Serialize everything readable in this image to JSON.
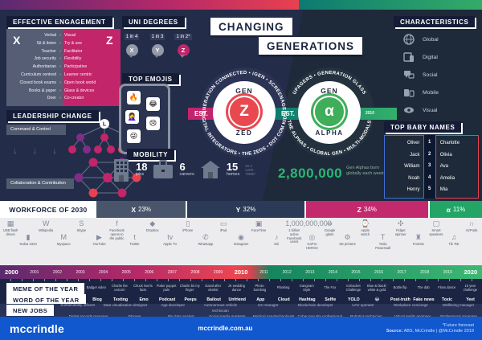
{
  "title_banner": {
    "line1": "CHANGING",
    "line2": "GENERATIONS"
  },
  "effective_engagement": {
    "title": "EFFECTIVE ENGAGEMENT",
    "x_letter": "X",
    "z_letter": "Z",
    "arrow": "›",
    "rows": [
      {
        "x": "Verbal",
        "z": "Visual"
      },
      {
        "x": "Sit & listen",
        "z": "Try & see"
      },
      {
        "x": "Teacher",
        "z": "Facilitator"
      },
      {
        "x": "Job security",
        "z": "Flexibility"
      },
      {
        "x": "Authoritarian",
        "z": "Participative"
      },
      {
        "x": "Curriculum centred",
        "z": "Learner centric"
      },
      {
        "x": "Closed book exams",
        "z": "Open book world"
      },
      {
        "x": "Books & paper",
        "z": "Glass & devices"
      },
      {
        "x": "Doer",
        "z": "Co-creator"
      }
    ]
  },
  "leadership": {
    "title": "LEADERSHIP CHANGE",
    "from": "Command & Control",
    "to": "Collaboration & Contribution",
    "node_letter": "L",
    "arrows": "↓ ↓ ↓"
  },
  "uni_degrees": {
    "title": "UNI DEGREES",
    "items": [
      {
        "ratio": "1 in 4",
        "gen": "X"
      },
      {
        "ratio": "1 in 3",
        "gen": "Y"
      },
      {
        "ratio": "1 in 2*",
        "gen": "Z"
      }
    ]
  },
  "top_emojis": {
    "title": "TOP EMOJIS",
    "emojis": [
      "🔥",
      "😂",
      "🤦‍♀️",
      "😢",
      "😜"
    ]
  },
  "mobility": {
    "title": "MOBILITY",
    "items": [
      {
        "value": "18",
        "label": "jobs"
      },
      {
        "value": "6",
        "label": "careers"
      },
      {
        "value": "15",
        "label": "homes"
      }
    ],
    "suffix_lines": [
      "IN A",
      "LIFE-",
      "TIME*"
    ]
  },
  "gen_z": {
    "arc_top": "GENERATION CONNECTED • iGEN • SCREENAGERS",
    "arc_bottom": "DIGITAL INTEGRATORS • THE ZEDS • DOT COM KIDS",
    "gen": "GEN",
    "letter": "Z",
    "name": "ZED",
    "est": "EST.",
    "year": "1995",
    "accent": "#e8484f",
    "ribbon": "#c2256b"
  },
  "gen_alpha": {
    "arc_top": "UPAGERS • GENERATION GLASS",
    "arc_bottom": "THE ALPHAS • GLOBAL GEN • MULTI-MODALS",
    "gen": "GEN",
    "letter": "α",
    "name": "ALPHA",
    "est": "EST.",
    "year": "2010",
    "accent": "#3fae5a",
    "ribbon_from": "#0c7b70",
    "ribbon_to": "#33b06a"
  },
  "births": {
    "number": "2,800,000",
    "caption": "Gen Alphas born globally each week",
    "color": "#2bb673"
  },
  "characteristics": {
    "title": "CHARACTERISTICS",
    "items": [
      {
        "icon": "globe-icon",
        "label": "Global"
      },
      {
        "icon": "devices-icon",
        "label": "Digital"
      },
      {
        "icon": "social-icon",
        "label": "Social"
      },
      {
        "icon": "mobile-icon",
        "label": "Mobile"
      },
      {
        "icon": "eye-icon",
        "label": "Visual"
      }
    ]
  },
  "baby_names": {
    "title": "TOP BABY NAMES",
    "boys": [
      "Oliver",
      "Jack",
      "William",
      "Noah",
      "Henry"
    ],
    "ranks": [
      "1",
      "2",
      "3",
      "4",
      "5"
    ],
    "girls": [
      "Charlotte",
      "Olivia",
      "Ava",
      "Amelia",
      "Mia"
    ]
  },
  "workforce": {
    "title": "WORKFORCE OF 2030",
    "segments": [
      {
        "gen": "X",
        "pct": "23%",
        "grow": "23",
        "color": "#49556b"
      },
      {
        "gen": "Y",
        "pct": "32%",
        "grow": "32",
        "color": "#2b3a57"
      },
      {
        "gen": "Z",
        "pct": "34%",
        "grow": "34",
        "color": "#c32a6e"
      },
      {
        "gen": "α",
        "pct": "11%",
        "grow": "11",
        "color": "#22a566"
      }
    ]
  },
  "timeline": {
    "years": [
      "2000",
      "2001",
      "2002",
      "2003",
      "2004",
      "2005",
      "2006",
      "2007",
      "2008",
      "2009",
      "2010",
      "2011",
      "2012",
      "2013",
      "2014",
      "2015",
      "2016",
      "2017",
      "2018",
      "2019",
      "2020"
    ],
    "items": [
      {
        "glyph": "▦",
        "label": "USB flash drives",
        "year": "2000"
      },
      {
        "glyph": "▮",
        "label": "Nokia 3310",
        "year": "2000"
      },
      {
        "glyph": "W",
        "label": "Wikipedia",
        "year": "2001"
      },
      {
        "glyph": "M",
        "label": "Myspace",
        "year": "2003"
      },
      {
        "glyph": "S",
        "label": "Skype",
        "year": "2003"
      },
      {
        "glyph": "▶",
        "label": "YouTube",
        "year": "2005"
      },
      {
        "glyph": "f",
        "label": "Facebook opens to the public",
        "year": "2006"
      },
      {
        "glyph": "t",
        "label": "Twitter",
        "year": "2006"
      },
      {
        "glyph": "◆",
        "label": "Dropbox",
        "year": "2007"
      },
      {
        "glyph": "tv",
        "label": "Apple TV",
        "year": "2007"
      },
      {
        "glyph": "▯",
        "label": "iPhone",
        "year": "2007"
      },
      {
        "glyph": "✆",
        "label": "Whatsapp",
        "year": "2009"
      },
      {
        "glyph": "▭",
        "label": "iPad",
        "year": "2010"
      },
      {
        "glyph": "◉",
        "label": "Instagram",
        "year": "2010"
      },
      {
        "glyph": "▣",
        "label": "FaceTime",
        "year": "2010"
      },
      {
        "glyph": "♪",
        "label": "Siri",
        "year": "2011"
      },
      {
        "glyph": "1,000,000,000",
        "label": "1 billion active Facebook users",
        "year": "2012"
      },
      {
        "glyph": "◎",
        "label": "GoPro HERO3",
        "year": "2012"
      },
      {
        "glyph": "∞",
        "label": "Google glass",
        "year": "2013"
      },
      {
        "glyph": "⚙",
        "label": "3D printers",
        "year": "2013"
      },
      {
        "glyph": "⌚",
        "label": "Apple watch",
        "year": "2015"
      },
      {
        "glyph": "T",
        "label": "Tesla Powerwall",
        "year": "2016"
      },
      {
        "glyph": "✣",
        "label": "Fidget spinner",
        "year": "2017"
      },
      {
        "glyph": "♜",
        "label": "Fortnite",
        "year": "2018"
      },
      {
        "glyph": "▢",
        "label": "Smart speakers",
        "year": "2018"
      },
      {
        "glyph": "♫",
        "label": "Tik Tok",
        "year": "2019"
      },
      {
        "glyph": "∩",
        "label": "AirPods",
        "year": "2020"
      }
    ]
  },
  "meme": {
    "title": "MEME OF THE YEAR",
    "items": [
      "Badger video",
      "Charlie the unicorn",
      "Chuck Norris facts",
      "Potter puppet pals",
      "Charlie bit my finger",
      "David after dentist",
      "JK wedding dance",
      "Photo-bombing",
      "Planking",
      "Gangnam Style",
      "The Fox",
      "Icebucket Challenge",
      "Blue & black/ white & gold",
      "Bottle flip",
      "The dab",
      "Floss dance",
      "10 year challenge"
    ]
  },
  "word": {
    "title": "WORD OF THE YEAR",
    "items": [
      "Blog",
      "Texting",
      "Emo",
      "Podcast",
      "Peeps",
      "Bailout",
      "Unfriend",
      "App",
      "Cloud",
      "Hashtag",
      "Selfie",
      "YOLO",
      "😂",
      "Post-truth",
      "Fake news",
      "Toxic",
      "Yeet"
    ]
  },
  "new_jobs": {
    "title": "NEW JOBS",
    "row1": [
      "Sustainability officers",
      "Data visualisation designer",
      "App developer",
      "Autonomous vehicle technician",
      "UX manager",
      "Blockchain developer",
      "UAV operator",
      "Workplace concierge",
      "Wellbeing manager"
    ],
    "row2": [
      "Digital records manager",
      "Blogger",
      "Big data analyst",
      "Social media marketer",
      "Medical nanotechnologist",
      "Cyber security professional",
      "Robotics technician",
      "Virtual reality engineer",
      "Professional organiser"
    ]
  },
  "footer": {
    "logo": "mccrindle",
    "url": "mccrindle.com.au",
    "note": "*Future forecast",
    "source_label": "Source:",
    "source_rest": " ABS, McCrindle   |   @McCrindle 2019"
  }
}
